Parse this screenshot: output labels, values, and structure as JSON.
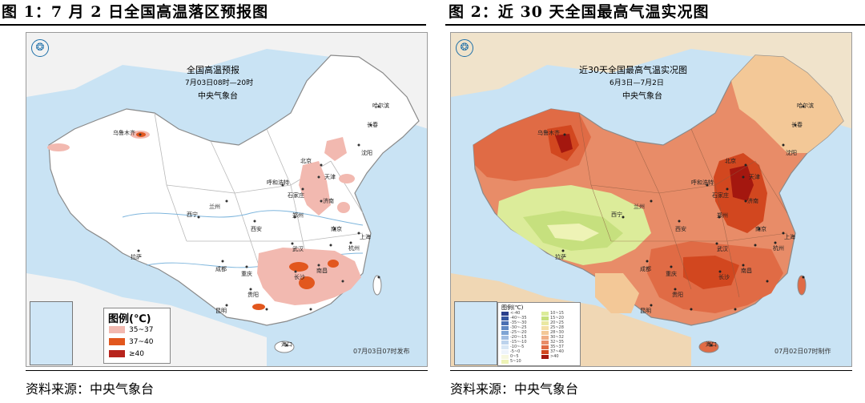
{
  "figure1": {
    "title": "图 1：7 月 2 日全国高温落区预报图",
    "map_title": "全国高温预报",
    "map_subtitle": "7月03日08时—20时",
    "map_org": "中央气象台",
    "legend_title": "图例(℃)",
    "legend_items": [
      {
        "label": "35~37",
        "color": "#f2b9b0"
      },
      {
        "label": "37~40",
        "color": "#e2571e"
      },
      {
        "label": "≥40",
        "color": "#b7241c"
      }
    ],
    "issue_stamp": "07月03日07时发布",
    "cities": [
      "乌鲁木齐",
      "拉萨",
      "西宁",
      "兰州",
      "银川",
      "呼和浩特",
      "北京",
      "天津",
      "石家庄",
      "太原",
      "济南",
      "郑州",
      "西安",
      "成都",
      "重庆",
      "武汉",
      "长沙",
      "南昌",
      "杭州",
      "上海",
      "南京",
      "合肥",
      "福州",
      "贵阳",
      "昆明",
      "南宁",
      "广州",
      "海口",
      "台北",
      "沈阳",
      "长春",
      "哈尔滨"
    ],
    "source": "资料来源：中央气象台"
  },
  "figure2": {
    "title": "图 2：近 30 天全国最高气温实况图",
    "map_title": "近30天全国最高气温实况图",
    "map_subtitle": "6月3日—7月2日",
    "map_org": "中央气象台",
    "legend_title": "图例(℃)",
    "legend_items": [
      {
        "label": "<-40",
        "color": "#2b3f8c"
      },
      {
        "label": "-40~-35",
        "color": "#35559f"
      },
      {
        "label": "-35~-30",
        "color": "#4a6fb3"
      },
      {
        "label": "-30~-25",
        "color": "#6088c4"
      },
      {
        "label": "-25~-20",
        "color": "#7ea4d4"
      },
      {
        "label": "-20~-15",
        "color": "#9fbde2"
      },
      {
        "label": "-15~-10",
        "color": "#bcd3ec"
      },
      {
        "label": "-10~-5",
        "color": "#d8e7f5"
      },
      {
        "label": "-5~0",
        "color": "#eef4fb"
      },
      {
        "label": "0~5",
        "color": "#f6f7df"
      },
      {
        "label": "5~10",
        "color": "#eef3b6"
      },
      {
        "label": "10~15",
        "color": "#dcec9a"
      },
      {
        "label": "15~20",
        "color": "#c6e07e"
      },
      {
        "label": "20~25",
        "color": "#e9e8a2"
      },
      {
        "label": "25~28",
        "color": "#f4dfa6"
      },
      {
        "label": "28~30",
        "color": "#f3c897"
      },
      {
        "label": "30~32",
        "color": "#efae86"
      },
      {
        "label": "32~35",
        "color": "#e88c68"
      },
      {
        "label": "35~37",
        "color": "#e06b45"
      },
      {
        "label": "37~40",
        "color": "#d2471f"
      },
      {
        "label": ">40",
        "color": "#a4170f"
      }
    ],
    "issue_stamp": "07月02日07时制作",
    "cities": [
      "乌鲁木齐",
      "拉萨",
      "西宁",
      "兰州",
      "银川",
      "呼和浩特",
      "北京",
      "天津",
      "石家庄",
      "太原",
      "济南",
      "郑州",
      "西安",
      "成都",
      "重庆",
      "武汉",
      "长沙",
      "南昌",
      "杭州",
      "上海",
      "南京",
      "合肥",
      "福州",
      "贵阳",
      "昆明",
      "南宁",
      "广州",
      "海口",
      "台北",
      "沈阳",
      "长春",
      "哈尔滨"
    ],
    "source": "资料来源：中央气象台"
  },
  "colors": {
    "sea": "#c9e3f4",
    "land1": "#ffffff",
    "land2": "#f7f1de",
    "border": "#8a8a8a"
  }
}
